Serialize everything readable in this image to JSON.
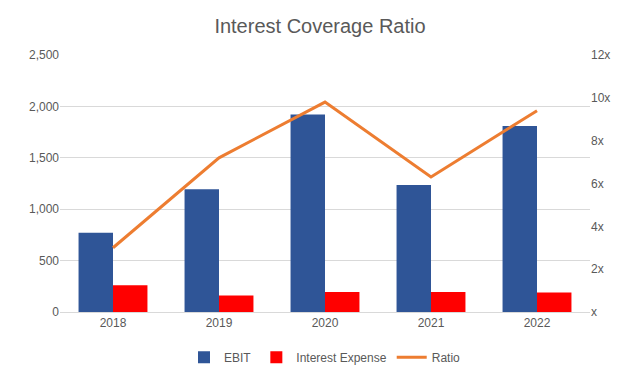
{
  "chart_data": {
    "type": "bar",
    "title": "Interest Coverage Ratio",
    "categories": [
      "2018",
      "2019",
      "2020",
      "2021",
      "2022"
    ],
    "series": [
      {
        "name": "EBIT",
        "type": "bar",
        "color": "#2F5597",
        "values": [
          770,
          1195,
          1920,
          1235,
          1810
        ]
      },
      {
        "name": "Interest Expense",
        "type": "bar",
        "color": "#FF0000",
        "values": [
          260,
          160,
          195,
          195,
          190
        ]
      },
      {
        "name": "Ratio",
        "type": "line",
        "axis": "y2",
        "color": "#ED7D31",
        "values": [
          3.0,
          7.2,
          9.8,
          6.3,
          9.4
        ]
      }
    ],
    "ylim": [
      0,
      2500
    ],
    "yticks": [
      0,
      500,
      {
        "value": 1000,
        "label": "1,000"
      },
      {
        "value": 1500,
        "label": "1,500"
      },
      {
        "value": 2000,
        "label": "2,000"
      },
      {
        "value": 2500,
        "label": "2,500"
      }
    ],
    "y2lim": [
      0,
      12
    ],
    "y2ticks": [
      {
        "value": 0,
        "label": "x"
      },
      {
        "value": 2,
        "label": "2x"
      },
      {
        "value": 4,
        "label": "4x"
      },
      {
        "value": 6,
        "label": "6x"
      },
      {
        "value": 8,
        "label": "8x"
      },
      {
        "value": 10,
        "label": "10x"
      },
      {
        "value": 12,
        "label": "12x"
      }
    ],
    "grid": true,
    "legend": "bottom"
  }
}
